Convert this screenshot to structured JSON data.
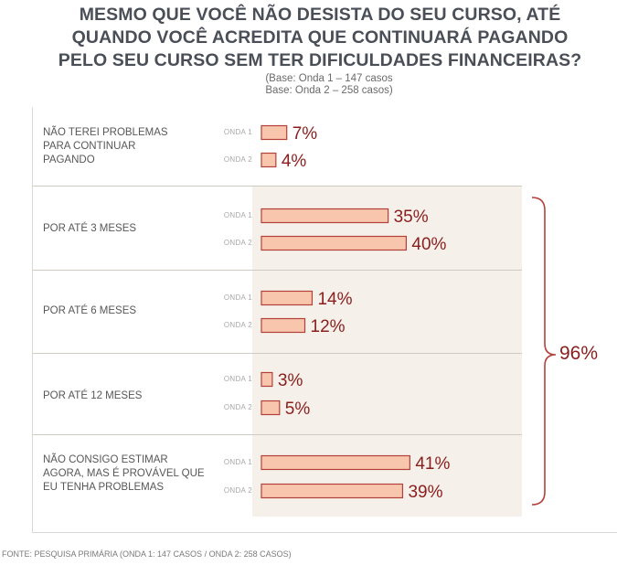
{
  "title_lines": [
    "MESMO QUE VOCÊ NÃO DESISTA DO SEU CURSO, ATÉ",
    "QUANDO VOCÊ ACREDITA QUE CONTINUARÁ PAGANDO",
    "PELO SEU CURSO SEM TER DIFICULDADES FINANCEIRAS?"
  ],
  "base": [
    "(Base: Onda 1 – 147 casos",
    "Base: Onda 2 – 258 casos)"
  ],
  "source": "FONTE: PESQUISA PRIMÁRIA (ONDA 1: 147 CASOS / ONDA 2: 258 CASOS)",
  "bracket_label": "96%",
  "colors": {
    "bar_fill": "#f8c6ad",
    "bar_stroke": "#b5403a",
    "value_text": "#8b1d1d",
    "shade": "#f5f1ea"
  },
  "chart_data": {
    "type": "bar",
    "orientation": "horizontal",
    "categories": [
      [
        "NÃO TEREI PROBLEMAS",
        "PARA CONTINUAR",
        "PAGANDO"
      ],
      [
        "POR ATÉ 3 MESES"
      ],
      [
        "POR ATÉ 6 MESES"
      ],
      [
        "POR ATÉ 12 MESES"
      ],
      [
        "NÃO CONSIGO ESTIMAR",
        "AGORA, MAS É PROVÁVEL QUE",
        "EU TENHA PROBLEMAS"
      ]
    ],
    "series": [
      {
        "name": "ONDA 1",
        "values": [
          7,
          35,
          14,
          3,
          41
        ],
        "labels": [
          "7%",
          "35%",
          "14%",
          "3%",
          "41%"
        ]
      },
      {
        "name": "ONDA 2",
        "values": [
          4,
          40,
          12,
          5,
          39
        ],
        "labels": [
          "4%",
          "40%",
          "12%",
          "5%",
          "39%"
        ]
      }
    ],
    "unit": "%",
    "bracket": {
      "from_category": 1,
      "to_category": 4,
      "label": "96%"
    }
  }
}
